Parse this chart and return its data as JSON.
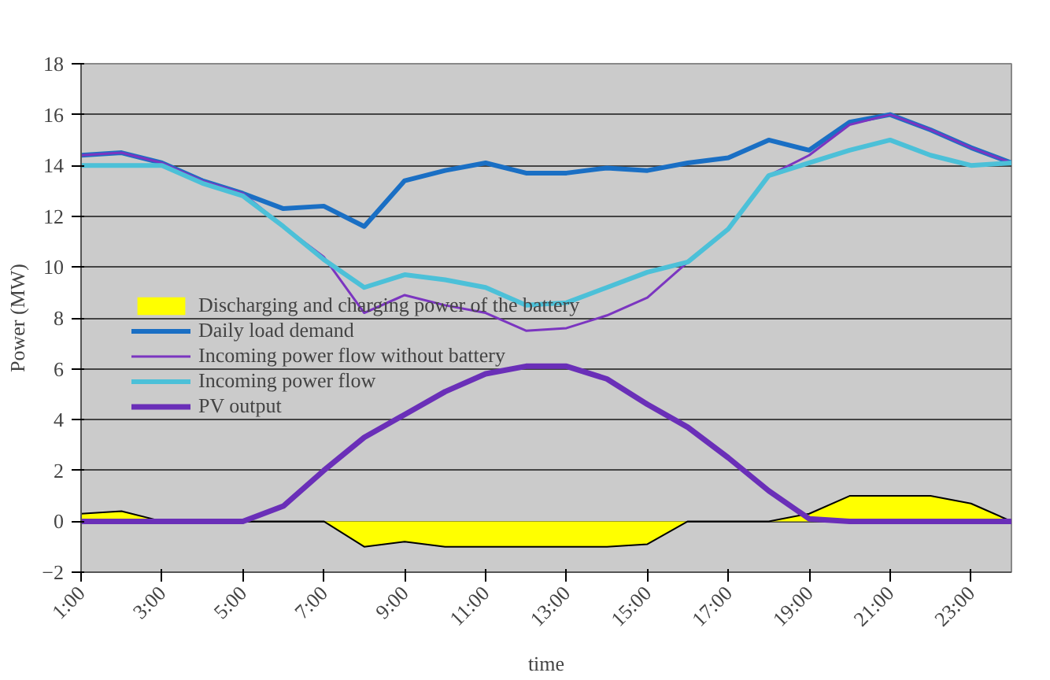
{
  "chart_data": {
    "type": "line",
    "xlabel": "time",
    "ylabel": "Power (MW)",
    "x": [
      1,
      2,
      3,
      4,
      5,
      6,
      7,
      8,
      9,
      10,
      11,
      12,
      13,
      14,
      15,
      16,
      17,
      18,
      19,
      20,
      21,
      22,
      23,
      24
    ],
    "xlim": [
      1,
      24
    ],
    "xticks": [
      {
        "value": 1,
        "label": "1:00"
      },
      {
        "value": 3,
        "label": "3:00"
      },
      {
        "value": 5,
        "label": "5:00"
      },
      {
        "value": 7,
        "label": "7:00"
      },
      {
        "value": 9,
        "label": "9:00"
      },
      {
        "value": 11,
        "label": "11:00"
      },
      {
        "value": 13,
        "label": "13:00"
      },
      {
        "value": 15,
        "label": "15:00"
      },
      {
        "value": 17,
        "label": "17:00"
      },
      {
        "value": 19,
        "label": "19:00"
      },
      {
        "value": 21,
        "label": "21:00"
      },
      {
        "value": 23,
        "label": "23:00"
      }
    ],
    "ylim": [
      -2,
      18
    ],
    "yticks": [
      -2,
      0,
      2,
      4,
      6,
      8,
      10,
      12,
      14,
      16,
      18
    ],
    "grid": "y",
    "legend": "left",
    "series": [
      {
        "name": "Discharging and charging power of the battery",
        "type": "area",
        "color": "#ffff00",
        "values": [
          0.3,
          0.4,
          0,
          0,
          0,
          0,
          0,
          -1.0,
          -0.8,
          -1.0,
          -1.0,
          -1.0,
          -1.0,
          -1.0,
          -0.9,
          0,
          0,
          0,
          0.3,
          1.0,
          1.0,
          1.0,
          0.7,
          0
        ]
      },
      {
        "name": "Daily load demand",
        "color": "#1a6fc4",
        "values": [
          14.4,
          14.5,
          14.1,
          13.4,
          12.9,
          12.3,
          12.4,
          11.6,
          13.4,
          13.8,
          14.1,
          13.7,
          13.7,
          13.9,
          13.8,
          14.1,
          14.3,
          15.0,
          14.6,
          15.7,
          16.0,
          15.4,
          14.7,
          14.1
        ]
      },
      {
        "name": "Incoming power flow without battery",
        "color": "#7b35c0",
        "values": [
          14.4,
          14.5,
          14.1,
          13.4,
          12.9,
          11.6,
          10.4,
          8.2,
          8.9,
          8.5,
          8.2,
          7.5,
          7.6,
          8.1,
          8.8,
          10.2,
          11.5,
          13.6,
          14.4,
          15.6,
          16.0,
          15.4,
          14.7,
          14.1
        ]
      },
      {
        "name": "Incoming power flow",
        "color": "#4cc0d8",
        "values": [
          14.0,
          14.0,
          14.0,
          13.3,
          12.8,
          11.6,
          10.3,
          9.2,
          9.7,
          9.5,
          9.2,
          8.5,
          8.6,
          9.2,
          9.8,
          10.2,
          11.5,
          13.6,
          14.1,
          14.6,
          15.0,
          14.4,
          14.0,
          14.1
        ]
      },
      {
        "name": "PV output",
        "color": "#6a2fb8",
        "values": [
          0,
          0,
          0,
          0,
          0,
          0.6,
          2.0,
          3.3,
          4.2,
          5.1,
          5.8,
          6.1,
          6.1,
          5.6,
          4.6,
          3.7,
          2.5,
          1.2,
          0.1,
          0,
          0,
          0,
          0,
          0
        ]
      }
    ]
  }
}
